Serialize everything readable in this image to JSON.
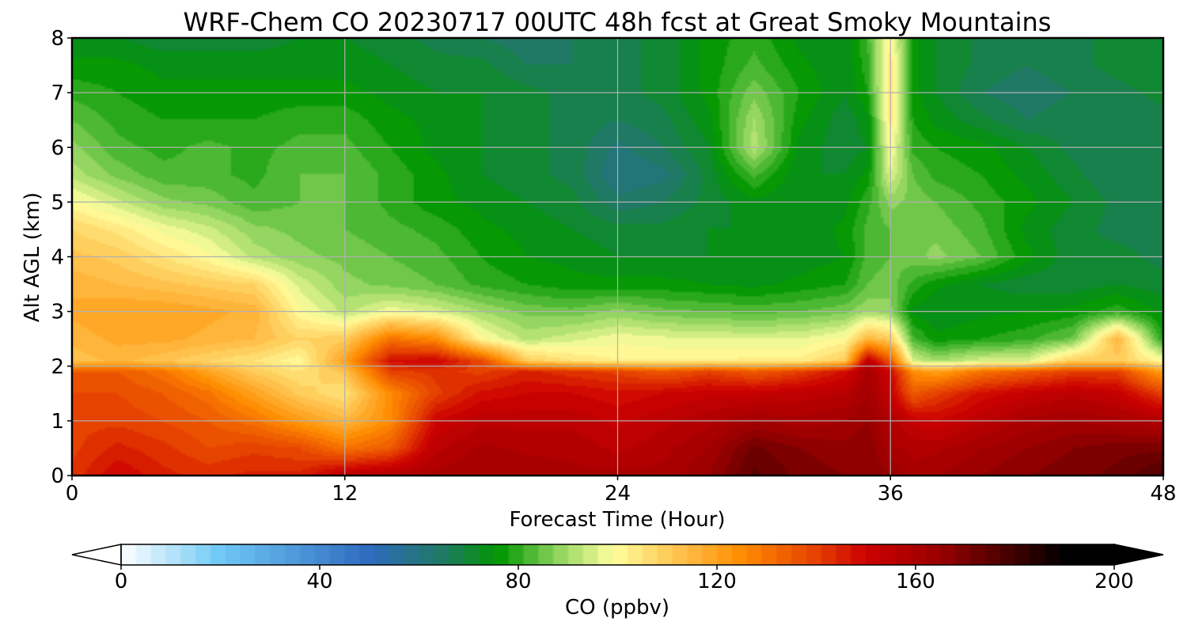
{
  "chart_data": {
    "type": "heatmap",
    "title": "WRF-Chem CO  20230717 00UTC 48h fcst at Great Smoky Mountains",
    "xlabel": "Forecast Time (Hour)",
    "ylabel": "Alt AGL (km)",
    "xlim": [
      0,
      48
    ],
    "ylim": [
      0,
      8
    ],
    "x_ticks": [
      0,
      12,
      24,
      36,
      48
    ],
    "y_ticks": [
      0,
      1,
      2,
      3,
      4,
      5,
      6,
      7,
      8
    ],
    "grid": true,
    "colorbar": {
      "label": "CO  (ppbv)",
      "min": 0,
      "max": 200,
      "ticks": [
        0,
        40,
        80,
        120,
        160,
        200
      ],
      "extend": "both",
      "stops": [
        {
          "v": 0,
          "color": "#ffffff"
        },
        {
          "v": 20,
          "color": "#6ec8f5"
        },
        {
          "v": 50,
          "color": "#2f6abf"
        },
        {
          "v": 65,
          "color": "#1f7a62"
        },
        {
          "v": 76,
          "color": "#009600"
        },
        {
          "v": 88,
          "color": "#8fd45e"
        },
        {
          "v": 99,
          "color": "#ffff9e"
        },
        {
          "v": 112,
          "color": "#ffc34f"
        },
        {
          "v": 125,
          "color": "#ff8c00"
        },
        {
          "v": 140,
          "color": "#e54000"
        },
        {
          "v": 150,
          "color": "#cc0000"
        },
        {
          "v": 165,
          "color": "#990000"
        },
        {
          "v": 190,
          "color": "#000000"
        }
      ]
    },
    "x": [
      0,
      2,
      4,
      6,
      8,
      10,
      12,
      14,
      16,
      18,
      20,
      22,
      24,
      26,
      28,
      30,
      32,
      34,
      35,
      36,
      37,
      38,
      40,
      42,
      44,
      46,
      48
    ],
    "y": [
      0,
      0.5,
      1,
      1.5,
      1.9,
      2.1,
      2.5,
      3,
      3.5,
      4,
      4.5,
      5,
      5.5,
      6,
      6.5,
      7,
      7.5,
      8
    ],
    "values": [
      [
        142,
        150,
        145,
        143,
        145,
        145,
        155,
        158,
        160,
        162,
        162,
        160,
        160,
        160,
        165,
        175,
        170,
        168,
        168,
        165,
        160,
        162,
        165,
        168,
        170,
        172,
        178
      ],
      [
        140,
        145,
        142,
        138,
        140,
        138,
        130,
        135,
        155,
        160,
        158,
        158,
        155,
        158,
        162,
        172,
        168,
        166,
        168,
        160,
        158,
        158,
        162,
        165,
        168,
        170,
        170
      ],
      [
        140,
        140,
        138,
        135,
        130,
        122,
        115,
        125,
        150,
        155,
        155,
        155,
        152,
        155,
        158,
        162,
        160,
        162,
        165,
        158,
        152,
        150,
        155,
        160,
        162,
        160,
        158
      ],
      [
        138,
        138,
        135,
        130,
        120,
        110,
        105,
        125,
        140,
        148,
        150,
        150,
        148,
        150,
        152,
        152,
        154,
        156,
        162,
        152,
        135,
        140,
        148,
        152,
        155,
        152,
        140
      ],
      [
        135,
        135,
        130,
        120,
        110,
        105,
        112,
        140,
        142,
        140,
        145,
        142,
        140,
        135,
        140,
        135,
        140,
        148,
        160,
        150,
        125,
        120,
        130,
        135,
        140,
        140,
        120
      ],
      [
        112,
        115,
        112,
        108,
        105,
        100,
        120,
        148,
        150,
        138,
        110,
        105,
        102,
        102,
        102,
        103,
        103,
        110,
        155,
        135,
        95,
        90,
        95,
        95,
        110,
        110,
        100
      ],
      [
        115,
        118,
        118,
        116,
        114,
        108,
        110,
        130,
        125,
        100,
        92,
        95,
        98,
        97,
        96,
        96,
        96,
        100,
        115,
        110,
        82,
        76,
        78,
        80,
        85,
        115,
        78
      ],
      [
        118,
        120,
        120,
        118,
        116,
        100,
        92,
        98,
        95,
        90,
        86,
        85,
        88,
        85,
        84,
        83,
        84,
        86,
        90,
        88,
        74,
        72,
        74,
        75,
        76,
        80,
        74
      ],
      [
        116,
        114,
        112,
        110,
        108,
        95,
        88,
        86,
        84,
        80,
        78,
        76,
        76,
        76,
        75,
        74,
        76,
        78,
        84,
        86,
        80,
        76,
        72,
        70,
        70,
        72,
        70
      ],
      [
        112,
        110,
        105,
        100,
        92,
        88,
        86,
        84,
        82,
        78,
        75,
        74,
        72,
        72,
        72,
        72,
        73,
        75,
        82,
        84,
        86,
        88,
        84,
        76,
        70,
        70,
        68
      ],
      [
        108,
        104,
        98,
        94,
        88,
        86,
        84,
        82,
        80,
        76,
        74,
        72,
        70,
        70,
        72,
        72,
        72,
        76,
        82,
        84,
        86,
        86,
        82,
        74,
        70,
        68,
        68
      ],
      [
        100,
        94,
        88,
        86,
        82,
        84,
        84,
        80,
        76,
        74,
        72,
        70,
        64,
        66,
        70,
        74,
        72,
        74,
        80,
        88,
        86,
        84,
        80,
        76,
        72,
        68,
        68
      ],
      [
        92,
        86,
        82,
        82,
        80,
        84,
        84,
        80,
        76,
        72,
        70,
        68,
        60,
        62,
        70,
        82,
        72,
        72,
        76,
        96,
        84,
        80,
        78,
        74,
        70,
        66,
        68
      ],
      [
        88,
        82,
        80,
        82,
        80,
        82,
        82,
        78,
        74,
        72,
        70,
        68,
        62,
        66,
        72,
        92,
        74,
        70,
        72,
        100,
        80,
        78,
        76,
        72,
        68,
        66,
        68
      ],
      [
        84,
        80,
        78,
        78,
        78,
        80,
        80,
        76,
        74,
        72,
        70,
        68,
        66,
        68,
        74,
        90,
        76,
        70,
        74,
        104,
        78,
        74,
        70,
        66,
        68,
        66,
        68
      ],
      [
        80,
        78,
        76,
        76,
        76,
        76,
        76,
        74,
        72,
        72,
        70,
        68,
        68,
        70,
        76,
        86,
        78,
        72,
        78,
        106,
        76,
        72,
        66,
        64,
        66,
        68,
        70
      ],
      [
        76,
        76,
        74,
        74,
        74,
        74,
        74,
        72,
        70,
        70,
        66,
        66,
        68,
        70,
        76,
        82,
        76,
        72,
        80,
        104,
        76,
        72,
        68,
        66,
        68,
        70,
        72
      ],
      [
        72,
        72,
        70,
        70,
        70,
        72,
        72,
        70,
        68,
        66,
        64,
        66,
        68,
        70,
        76,
        80,
        74,
        72,
        82,
        102,
        76,
        72,
        68,
        66,
        68,
        70,
        72
      ]
    ]
  }
}
